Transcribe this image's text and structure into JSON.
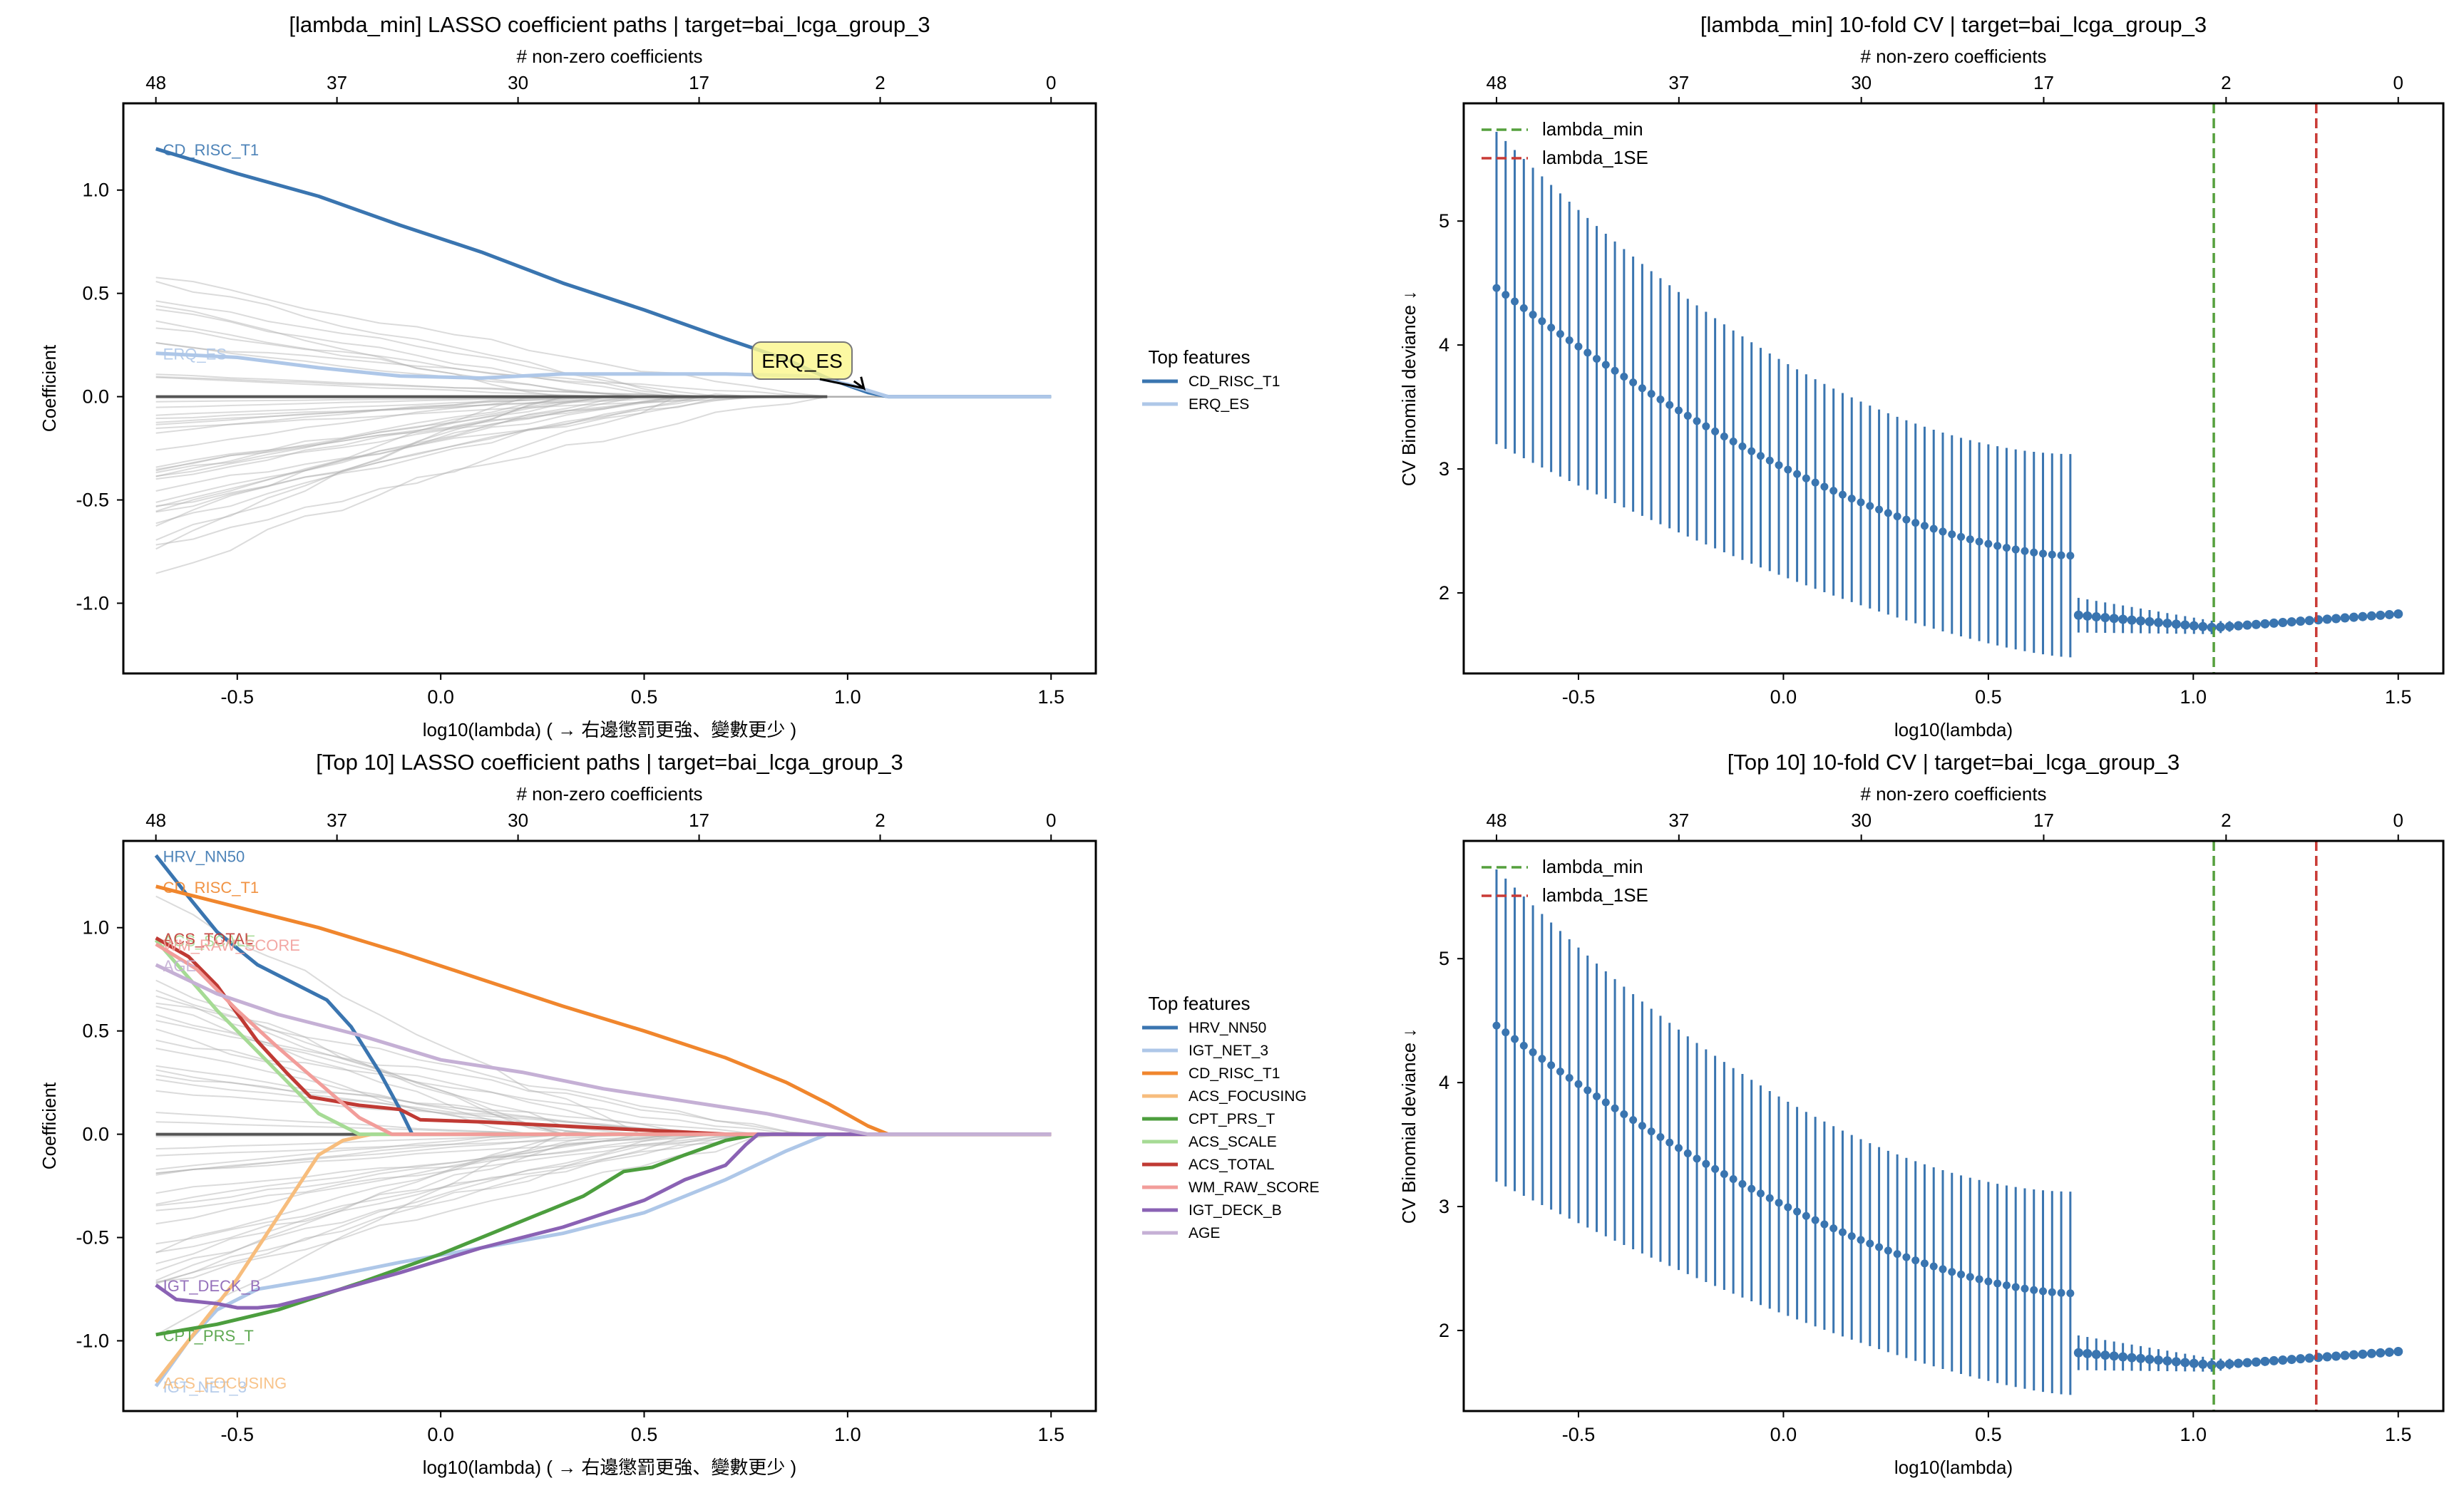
{
  "chart_data": [
    {
      "id": "coef_min",
      "type": "line",
      "title": "[lambda_min] LASSO coefficient paths  |  target=bai_lcga_group_3",
      "top_axis_label": "# non-zero coefficients",
      "top_ticks": {
        "x": [
          -0.7,
          -0.255,
          0.19,
          0.635,
          1.08,
          1.5
        ],
        "labels": [
          "48",
          "37",
          "30",
          "17",
          "2",
          "0"
        ]
      },
      "xlabel": "log10(lambda)  ( → 右邊懲罰更強、變數更少 )",
      "ylabel": "Coefficient",
      "xlim": [
        -0.78,
        1.61
      ],
      "ylim": [
        -1.34,
        1.42
      ],
      "xticks": [
        -0.5,
        0.0,
        0.5,
        1.0,
        1.5
      ],
      "xtick_labels": [
        "-0.5",
        "0.0",
        "0.5",
        "1.0",
        "1.5"
      ],
      "yticks": [
        -1.0,
        -0.5,
        0.0,
        0.5,
        1.0
      ],
      "ytick_labels": [
        "-1.0",
        "-0.5",
        "0.0",
        "0.5",
        "1.0"
      ],
      "legend": {
        "title": "Top features",
        "placement": "outside-right"
      },
      "highlight_series": [
        {
          "name": "CD_RISC_T1",
          "color": "#3a75b0",
          "x": [
            -0.7,
            -0.5,
            -0.3,
            -0.1,
            0.1,
            0.3,
            0.5,
            0.7,
            0.85,
            0.95,
            1.05,
            1.1,
            1.5
          ],
          "y": [
            1.2,
            1.08,
            0.97,
            0.83,
            0.7,
            0.55,
            0.42,
            0.28,
            0.18,
            0.09,
            0.02,
            0.0,
            0.0
          ]
        },
        {
          "name": "ERQ_ES",
          "color": "#aec7e8",
          "x": [
            -0.7,
            -0.5,
            -0.3,
            -0.1,
            0.1,
            0.3,
            0.5,
            0.7,
            0.9,
            1.0,
            1.1,
            1.5
          ],
          "y": [
            0.21,
            0.19,
            0.14,
            0.1,
            0.09,
            0.11,
            0.11,
            0.11,
            0.1,
            0.06,
            0.0,
            0.0
          ]
        }
      ],
      "annotation": {
        "text": "ERQ_ES",
        "target_x": 1.04,
        "target_y": 0.02,
        "box_color": "#fbf792"
      }
    },
    {
      "id": "cv_min",
      "type": "scatter",
      "title": "[lambda_min] 10-fold CV  |  target=bai_lcga_group_3",
      "top_axis_label": "# non-zero coefficients",
      "top_ticks": {
        "x": [
          -0.7,
          -0.255,
          0.19,
          0.635,
          1.08,
          1.5
        ],
        "labels": [
          "48",
          "37",
          "30",
          "17",
          "2",
          "0"
        ]
      },
      "xlabel": "log10(lambda)",
      "ylabel": "CV Binomial deviance ↓",
      "xlim": [
        -0.78,
        1.61
      ],
      "ylim": [
        1.35,
        5.95
      ],
      "xticks": [
        -0.5,
        0.0,
        0.5,
        1.0,
        1.5
      ],
      "xtick_labels": [
        "-0.5",
        "0.0",
        "0.5",
        "1.0",
        "1.5"
      ],
      "yticks": [
        2,
        3,
        4,
        5
      ],
      "ytick_labels": [
        "2",
        "3",
        "4",
        "5"
      ],
      "lambda_min": 1.05,
      "lambda_1se": 1.3,
      "legend": {
        "entries": [
          {
            "label": "lambda_min",
            "color": "#55a03d"
          },
          {
            "label": "lambda_1SE",
            "color": "#c93b36"
          }
        ],
        "placement": "top-left"
      },
      "series_color": "#3a75b0",
      "points": {
        "segment1": {
          "x_start": -0.7,
          "x_end": 0.7,
          "n": 64,
          "mean_start": 4.46,
          "mean_end": 2.3,
          "upper_start": 5.72,
          "upper_end": 3.12,
          "lower_start": 3.2,
          "lower_end": 1.48
        },
        "segment2": {
          "x_start": 0.72,
          "x_end": 1.5,
          "n": 37,
          "min_x": 1.05,
          "mean_left": 1.82,
          "mean_min": 1.72,
          "mean_right": 1.83,
          "err_left": 0.14
        }
      }
    },
    {
      "id": "coef_top10",
      "type": "line",
      "title": "[Top 10] LASSO coefficient paths  |  target=bai_lcga_group_3",
      "top_axis_label": "# non-zero coefficients",
      "top_ticks": {
        "x": [
          -0.7,
          -0.255,
          0.19,
          0.635,
          1.08,
          1.5
        ],
        "labels": [
          "48",
          "37",
          "30",
          "17",
          "2",
          "0"
        ]
      },
      "xlabel": "log10(lambda)  ( → 右邊懲罰更強、變數更少 )",
      "ylabel": "Coefficient",
      "xlim": [
        -0.78,
        1.61
      ],
      "ylim": [
        -1.34,
        1.42
      ],
      "xticks": [
        -0.5,
        0.0,
        0.5,
        1.0,
        1.5
      ],
      "xtick_labels": [
        "-0.5",
        "0.0",
        "0.5",
        "1.0",
        "1.5"
      ],
      "yticks": [
        -1.0,
        -0.5,
        0.0,
        0.5,
        1.0
      ],
      "ytick_labels": [
        "-1.0",
        "-0.5",
        "0.0",
        "0.5",
        "1.0"
      ],
      "legend": {
        "title": "Top features",
        "placement": "outside-right"
      },
      "highlight_series": [
        {
          "name": "HRV_NN50",
          "color": "#3a75b0",
          "x": [
            -0.7,
            -0.62,
            -0.55,
            -0.45,
            -0.35,
            -0.28,
            -0.22,
            -0.15,
            -0.1,
            -0.07,
            1.5
          ],
          "y": [
            1.35,
            1.15,
            0.98,
            0.82,
            0.72,
            0.65,
            0.52,
            0.3,
            0.12,
            0.0,
            0.0
          ]
        },
        {
          "name": "IGT_NET_3",
          "color": "#aec7e8",
          "x": [
            -0.7,
            -0.62,
            -0.55,
            -0.45,
            -0.3,
            -0.1,
            0.1,
            0.3,
            0.5,
            0.7,
            0.85,
            0.95,
            1.5
          ],
          "y": [
            -1.22,
            -1.0,
            -0.85,
            -0.75,
            -0.7,
            -0.62,
            -0.55,
            -0.48,
            -0.38,
            -0.22,
            -0.08,
            0.0,
            0.0
          ]
        },
        {
          "name": "CD_RISC_T1",
          "color": "#f0862d",
          "x": [
            -0.7,
            -0.5,
            -0.3,
            -0.1,
            0.1,
            0.3,
            0.5,
            0.7,
            0.85,
            0.95,
            1.05,
            1.1,
            1.5
          ],
          "y": [
            1.2,
            1.1,
            1.0,
            0.88,
            0.75,
            0.62,
            0.5,
            0.37,
            0.25,
            0.15,
            0.04,
            0.0,
            0.0
          ]
        },
        {
          "name": "ACS_FOCUSING",
          "color": "#f7bd7d",
          "x": [
            -0.7,
            -0.62,
            -0.5,
            -0.4,
            -0.3,
            -0.24,
            -0.17,
            -0.1,
            1.5
          ],
          "y": [
            -1.2,
            -1.0,
            -0.7,
            -0.4,
            -0.1,
            -0.03,
            0.0,
            0.0,
            0.0
          ]
        },
        {
          "name": "CPT_PRS_T",
          "color": "#4c9e3e",
          "x": [
            -0.7,
            -0.55,
            -0.4,
            -0.2,
            0.0,
            0.2,
            0.35,
            0.45,
            0.52,
            0.6,
            0.7,
            0.78,
            1.5
          ],
          "y": [
            -0.97,
            -0.92,
            -0.85,
            -0.72,
            -0.58,
            -0.42,
            -0.3,
            -0.18,
            -0.16,
            -0.1,
            -0.03,
            0.0,
            0.0
          ]
        },
        {
          "name": "ACS_SCALE",
          "color": "#a6db95",
          "x": [
            -0.7,
            -0.55,
            -0.4,
            -0.3,
            -0.2,
            1.5
          ],
          "y": [
            0.94,
            0.6,
            0.3,
            0.1,
            0.0,
            0.0
          ]
        },
        {
          "name": "ACS_TOTAL",
          "color": "#c03a34",
          "x": [
            -0.7,
            -0.62,
            -0.55,
            -0.45,
            -0.38,
            -0.32,
            -0.2,
            -0.1,
            -0.05,
            0.1,
            0.3,
            0.5,
            0.7,
            1.5
          ],
          "y": [
            0.95,
            0.86,
            0.72,
            0.45,
            0.3,
            0.18,
            0.14,
            0.12,
            0.07,
            0.06,
            0.04,
            0.02,
            0.0,
            0.0
          ]
        },
        {
          "name": "WM_RAW_SCORE",
          "color": "#f29d9a",
          "x": [
            -0.7,
            -0.6,
            -0.5,
            -0.4,
            -0.3,
            -0.2,
            -0.12,
            1.5
          ],
          "y": [
            0.92,
            0.8,
            0.6,
            0.42,
            0.25,
            0.08,
            0.0,
            0.0
          ]
        },
        {
          "name": "IGT_DECK_B",
          "color": "#8a62b4",
          "x": [
            -0.7,
            -0.65,
            -0.6,
            -0.55,
            -0.5,
            -0.45,
            -0.4,
            -0.3,
            -0.1,
            0.1,
            0.3,
            0.5,
            0.6,
            0.7,
            0.75,
            0.78,
            0.82,
            1.5
          ],
          "y": [
            -0.73,
            -0.8,
            -0.81,
            -0.82,
            -0.84,
            -0.84,
            -0.83,
            -0.78,
            -0.67,
            -0.55,
            -0.45,
            -0.32,
            -0.22,
            -0.15,
            -0.05,
            0.0,
            0.0,
            0.0
          ]
        },
        {
          "name": "AGE",
          "color": "#c5b0d5",
          "x": [
            -0.7,
            -0.55,
            -0.4,
            -0.2,
            0.0,
            0.2,
            0.4,
            0.6,
            0.8,
            0.95,
            1.05,
            1.5
          ],
          "y": [
            0.82,
            0.68,
            0.58,
            0.48,
            0.36,
            0.3,
            0.22,
            0.16,
            0.1,
            0.04,
            0.0,
            0.0
          ]
        }
      ],
      "inline_labels": [
        "HRV_NN50",
        "CD_RISC_T1",
        "ACS_TOTAL",
        "ACS_SCALE",
        "WM_RAW_SCORE",
        "AGE",
        "IGT_DECK_B",
        "CPT_PRS_T",
        "ACS_FOCUSING",
        "IGT_NET_3"
      ]
    },
    {
      "id": "cv_top10",
      "type": "scatter",
      "title": "[Top 10] 10-fold CV  |  target=bai_lcga_group_3",
      "top_axis_label": "# non-zero coefficients",
      "top_ticks": {
        "x": [
          -0.7,
          -0.255,
          0.19,
          0.635,
          1.08,
          1.5
        ],
        "labels": [
          "48",
          "37",
          "30",
          "17",
          "2",
          "0"
        ]
      },
      "xlabel": "log10(lambda)",
      "ylabel": "CV Binomial deviance ↓",
      "xlim": [
        -0.78,
        1.61
      ],
      "ylim": [
        1.35,
        5.95
      ],
      "xticks": [
        -0.5,
        0.0,
        0.5,
        1.0,
        1.5
      ],
      "xtick_labels": [
        "-0.5",
        "0.0",
        "0.5",
        "1.0",
        "1.5"
      ],
      "yticks": [
        2,
        3,
        4,
        5
      ],
      "ytick_labels": [
        "2",
        "3",
        "4",
        "5"
      ],
      "lambda_min": 1.05,
      "lambda_1se": 1.3,
      "legend": {
        "entries": [
          {
            "label": "lambda_min",
            "color": "#55a03d"
          },
          {
            "label": "lambda_1SE",
            "color": "#c93b36"
          }
        ],
        "placement": "top-left"
      },
      "series_color": "#3a75b0",
      "points": {
        "segment1": {
          "x_start": -0.7,
          "x_end": 0.7,
          "n": 64,
          "mean_start": 4.46,
          "mean_end": 2.3,
          "upper_start": 5.72,
          "upper_end": 3.12,
          "lower_start": 3.2,
          "lower_end": 1.48
        },
        "segment2": {
          "x_start": 0.72,
          "x_end": 1.5,
          "n": 37,
          "min_x": 1.05,
          "mean_left": 1.82,
          "mean_min": 1.72,
          "mean_right": 1.83,
          "err_left": 0.14
        }
      }
    }
  ]
}
